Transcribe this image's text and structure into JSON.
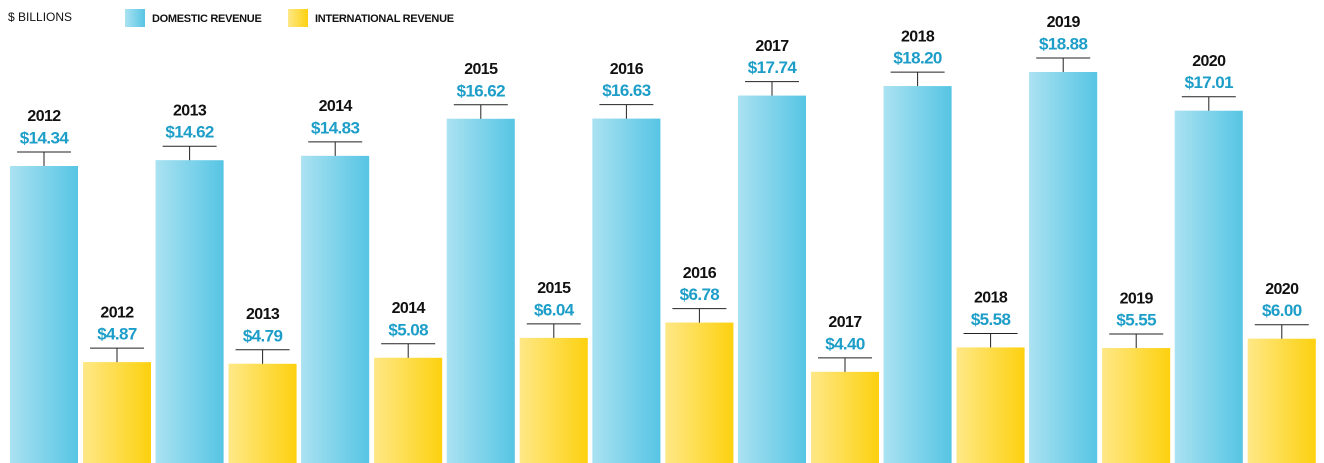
{
  "chart_data": {
    "type": "bar",
    "y_label": "$ BILLIONS",
    "categories": [
      "2012",
      "2013",
      "2014",
      "2015",
      "2016",
      "2017",
      "2018",
      "2019",
      "2020"
    ],
    "series": [
      {
        "name": "DOMESTIC REVENUE",
        "color": "#56c5e4",
        "values": [
          14.34,
          14.62,
          14.83,
          16.62,
          16.63,
          17.74,
          18.2,
          18.88,
          17.01
        ],
        "value_labels": [
          "$14.34",
          "$14.62",
          "$14.83",
          "$16.62",
          "$16.63",
          "$17.74",
          "$18.20",
          "$18.88",
          "$17.01"
        ]
      },
      {
        "name": "INTERNATIONAL REVENUE",
        "color": "#fdd10f",
        "values": [
          4.87,
          4.79,
          5.08,
          6.04,
          6.78,
          4.4,
          5.58,
          5.55,
          6.0
        ],
        "value_labels": [
          "$4.87",
          "$4.79",
          "$5.08",
          "$6.04",
          "$6.78",
          "$4.40",
          "$5.58",
          "$5.55",
          "$6.00"
        ]
      }
    ]
  }
}
